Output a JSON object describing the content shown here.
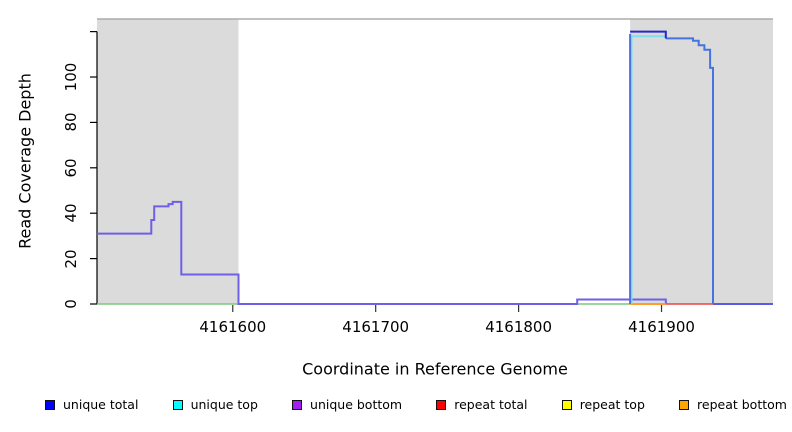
{
  "x_axis": {
    "title": "Coordinate in Reference Genome",
    "tick_labels": [
      "4161600",
      "4161700",
      "4161800",
      "4161900"
    ]
  },
  "y_axis": {
    "title": "Read Coverage Depth",
    "tick_labels": [
      "0",
      "20",
      "40",
      "60",
      "80",
      "100"
    ]
  },
  "legend": {
    "items": [
      {
        "label": "unique total",
        "color": "#0000FF"
      },
      {
        "label": "unique top",
        "color": "#00FFFF"
      },
      {
        "label": "unique bottom",
        "color": "#A020F0"
      },
      {
        "label": "repeat total",
        "color": "#FF0000"
      },
      {
        "label": "repeat top",
        "color": "#FFFF00"
      },
      {
        "label": "repeat bottom",
        "color": "#FFA500"
      }
    ]
  },
  "chart_data": {
    "type": "line",
    "title": "",
    "xlabel": "Coordinate in Reference Genome",
    "ylabel": "Read Coverage Depth",
    "xlim": [
      4161505,
      4161978
    ],
    "ylim": [
      0,
      126
    ],
    "xticks": [
      4161600,
      4161700,
      4161800,
      4161900
    ],
    "yticks": [
      0,
      20,
      40,
      60,
      80,
      100,
      120
    ],
    "ytick_labels_shown": [
      "0",
      "20",
      "40",
      "60",
      "80",
      "100"
    ],
    "grid": false,
    "legend_position": "bottom",
    "colors": {
      "shaded": "#DBDBDB",
      "shaded_border": "#ABABAB",
      "axis": "#000000"
    },
    "shaded_regions": [
      {
        "from": 4161505,
        "to": 4161604
      },
      {
        "from": 4161878,
        "to": 4161978
      }
    ],
    "series": [
      {
        "name": "unique total",
        "color": "#0000FF",
        "steps": [
          [
            4161505,
            31
          ],
          [
            4161543,
            37
          ],
          [
            4161545,
            43
          ],
          [
            4161555,
            44
          ],
          [
            4161558,
            45
          ],
          [
            4161564,
            13
          ],
          [
            4161604,
            0
          ],
          [
            4161841,
            2
          ],
          [
            4161878,
            120
          ],
          [
            4161903,
            117
          ],
          [
            4161922,
            116
          ],
          [
            4161926,
            114
          ],
          [
            4161930,
            112
          ],
          [
            4161934,
            104
          ],
          [
            4161936,
            0
          ]
        ]
      },
      {
        "name": "unique top",
        "color": "#00FFFF",
        "steps": [
          [
            4161505,
            0
          ],
          [
            4161878,
            118
          ],
          [
            4161903,
            117
          ],
          [
            4161922,
            116
          ],
          [
            4161926,
            114
          ],
          [
            4161930,
            112
          ],
          [
            4161934,
            104
          ],
          [
            4161936,
            0
          ]
        ]
      },
      {
        "name": "unique bottom",
        "color": "#A020F0",
        "steps": [
          [
            4161505,
            31
          ],
          [
            4161543,
            37
          ],
          [
            4161545,
            43
          ],
          [
            4161555,
            44
          ],
          [
            4161558,
            45
          ],
          [
            4161564,
            13
          ],
          [
            4161604,
            0
          ],
          [
            4161841,
            2
          ],
          [
            4161903,
            0
          ]
        ]
      },
      {
        "name": "repeat total",
        "color": "#FF0000",
        "steps": [
          [
            4161505,
            0
          ]
        ]
      },
      {
        "name": "repeat top",
        "color": "#FFFF00",
        "steps": [
          [
            4161505,
            0
          ]
        ]
      },
      {
        "name": "repeat bottom",
        "color": "#FFA500",
        "steps": [
          [
            4161505,
            0
          ]
        ]
      }
    ],
    "render_lines": [
      {
        "name": "zero-line-green-left",
        "color": "#7CC87C",
        "width": 1.5,
        "points": [
          [
            4161505,
            0
          ],
          [
            4161604,
            0
          ]
        ]
      },
      {
        "name": "zero-line-green-mid",
        "color": "#7CC87C",
        "width": 1.5,
        "points": [
          [
            4161841,
            0
          ],
          [
            4161878,
            0
          ]
        ]
      },
      {
        "name": "unique-coverage-trace",
        "color": "#6E5FE6",
        "width": 2,
        "points": [
          [
            4161505,
            31
          ],
          [
            4161543,
            31
          ],
          [
            4161543,
            37
          ],
          [
            4161545,
            37
          ],
          [
            4161545,
            43
          ],
          [
            4161555,
            43
          ],
          [
            4161555,
            44
          ],
          [
            4161558,
            44
          ],
          [
            4161558,
            45
          ],
          [
            4161564,
            45
          ],
          [
            4161564,
            13
          ],
          [
            4161604,
            13
          ],
          [
            4161604,
            0
          ],
          [
            4161841,
            0
          ],
          [
            4161841,
            2
          ],
          [
            4161903,
            2
          ],
          [
            4161903,
            0
          ]
        ]
      },
      {
        "name": "zero-line-orange",
        "color": "#FF9D2E",
        "width": 2,
        "points": [
          [
            4161878,
            0
          ],
          [
            4161903,
            0
          ]
        ]
      },
      {
        "name": "zero-line-red",
        "color": "#E84545",
        "width": 1.5,
        "points": [
          [
            4161903,
            0
          ],
          [
            4161936,
            0
          ]
        ]
      },
      {
        "name": "zero-line-blue-right",
        "color": "#5A5AE8",
        "width": 2,
        "points": [
          [
            4161936,
            0
          ],
          [
            4161978,
            0
          ]
        ]
      },
      {
        "name": "block-unique-top-cyan",
        "color": "#7FE0ED",
        "width": 2,
        "points": [
          [
            4161879,
            0
          ],
          [
            4161879,
            118
          ],
          [
            4161903,
            118
          ]
        ]
      },
      {
        "name": "block-left-edge-blue",
        "color": "#4574E0",
        "width": 2,
        "points": [
          [
            4161878,
            0
          ],
          [
            4161878,
            119
          ]
        ]
      },
      {
        "name": "block-steps-blue",
        "color": "#4574E0",
        "width": 2,
        "points": [
          [
            4161903,
            117
          ],
          [
            4161922,
            117
          ],
          [
            4161922,
            116
          ],
          [
            4161926,
            116
          ],
          [
            4161926,
            114
          ],
          [
            4161930,
            114
          ],
          [
            4161930,
            112
          ],
          [
            4161934,
            112
          ],
          [
            4161934,
            104
          ],
          [
            4161936,
            104
          ],
          [
            4161936,
            0
          ]
        ]
      },
      {
        "name": "block-top-navy",
        "color": "#2626C9",
        "width": 2,
        "points": [
          [
            4161878,
            120
          ],
          [
            4161903,
            120
          ],
          [
            4161903,
            117
          ]
        ]
      }
    ]
  }
}
